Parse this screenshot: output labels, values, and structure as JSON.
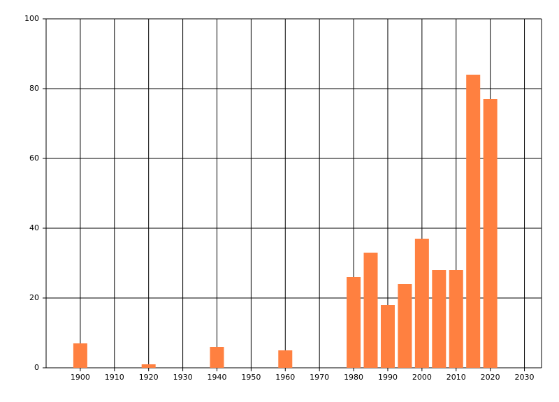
{
  "chart_data": {
    "type": "bar",
    "x": [
      1900,
      1920,
      1940,
      1960,
      1980,
      1985,
      1990,
      1995,
      2000,
      2005,
      2010,
      2015,
      2020
    ],
    "values": [
      7,
      1,
      6,
      5,
      26,
      33,
      18,
      24,
      37,
      28,
      28,
      84,
      77
    ],
    "color": "#ff8040",
    "xlim": [
      1890,
      2035
    ],
    "xticks": [
      1900,
      1910,
      1920,
      1930,
      1940,
      1950,
      1960,
      1970,
      1980,
      1990,
      2000,
      2010,
      2020,
      2030
    ],
    "ylim": [
      0,
      100
    ],
    "yticks": [
      0,
      20,
      40,
      60,
      80,
      100
    ],
    "grid": true
  }
}
